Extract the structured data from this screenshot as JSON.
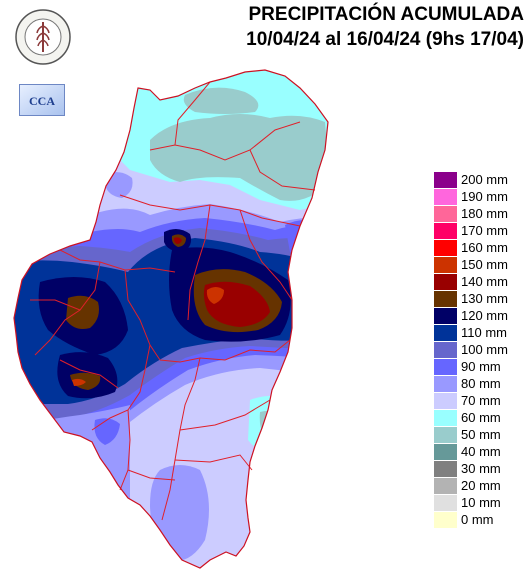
{
  "title": {
    "line1": "PRECIPITACIÓN ACUMULADA",
    "line2": "10/04/24 al 16/04/24 (9hs 17/04)"
  },
  "logos": {
    "bolsa_text": "BOLSA DE CEREALES DE ENTRE RIOS",
    "cca_text": "CCA"
  },
  "legend": [
    {
      "label": "200 mm",
      "color": "#8b008b"
    },
    {
      "label": "190 mm",
      "color": "#ff66dd"
    },
    {
      "label": "180 mm",
      "color": "#ff6699"
    },
    {
      "label": "170 mm",
      "color": "#ff0066"
    },
    {
      "label": "160 mm",
      "color": "#ff0000"
    },
    {
      "label": "150 mm",
      "color": "#cc3300"
    },
    {
      "label": "140 mm",
      "color": "#990000"
    },
    {
      "label": "130 mm",
      "color": "#663300"
    },
    {
      "label": "120 mm",
      "color": "#000066"
    },
    {
      "label": "110 mm",
      "color": "#003399"
    },
    {
      "label": "100 mm",
      "color": "#6666cc"
    },
    {
      "label": "90 mm",
      "color": "#6666ff"
    },
    {
      "label": "80 mm",
      "color": "#9999ff"
    },
    {
      "label": "70 mm",
      "color": "#ccccff"
    },
    {
      "label": "60 mm",
      "color": "#99ffff"
    },
    {
      "label": "50 mm",
      "color": "#99cccc"
    },
    {
      "label": "40 mm",
      "color": "#669999"
    },
    {
      "label": "30 mm",
      "color": "#808080"
    },
    {
      "label": "20 mm",
      "color": "#b3b3b3"
    },
    {
      "label": "10 mm",
      "color": "#e0e0e0"
    },
    {
      "label": "0 mm",
      "color": "#ffffcc"
    }
  ]
}
